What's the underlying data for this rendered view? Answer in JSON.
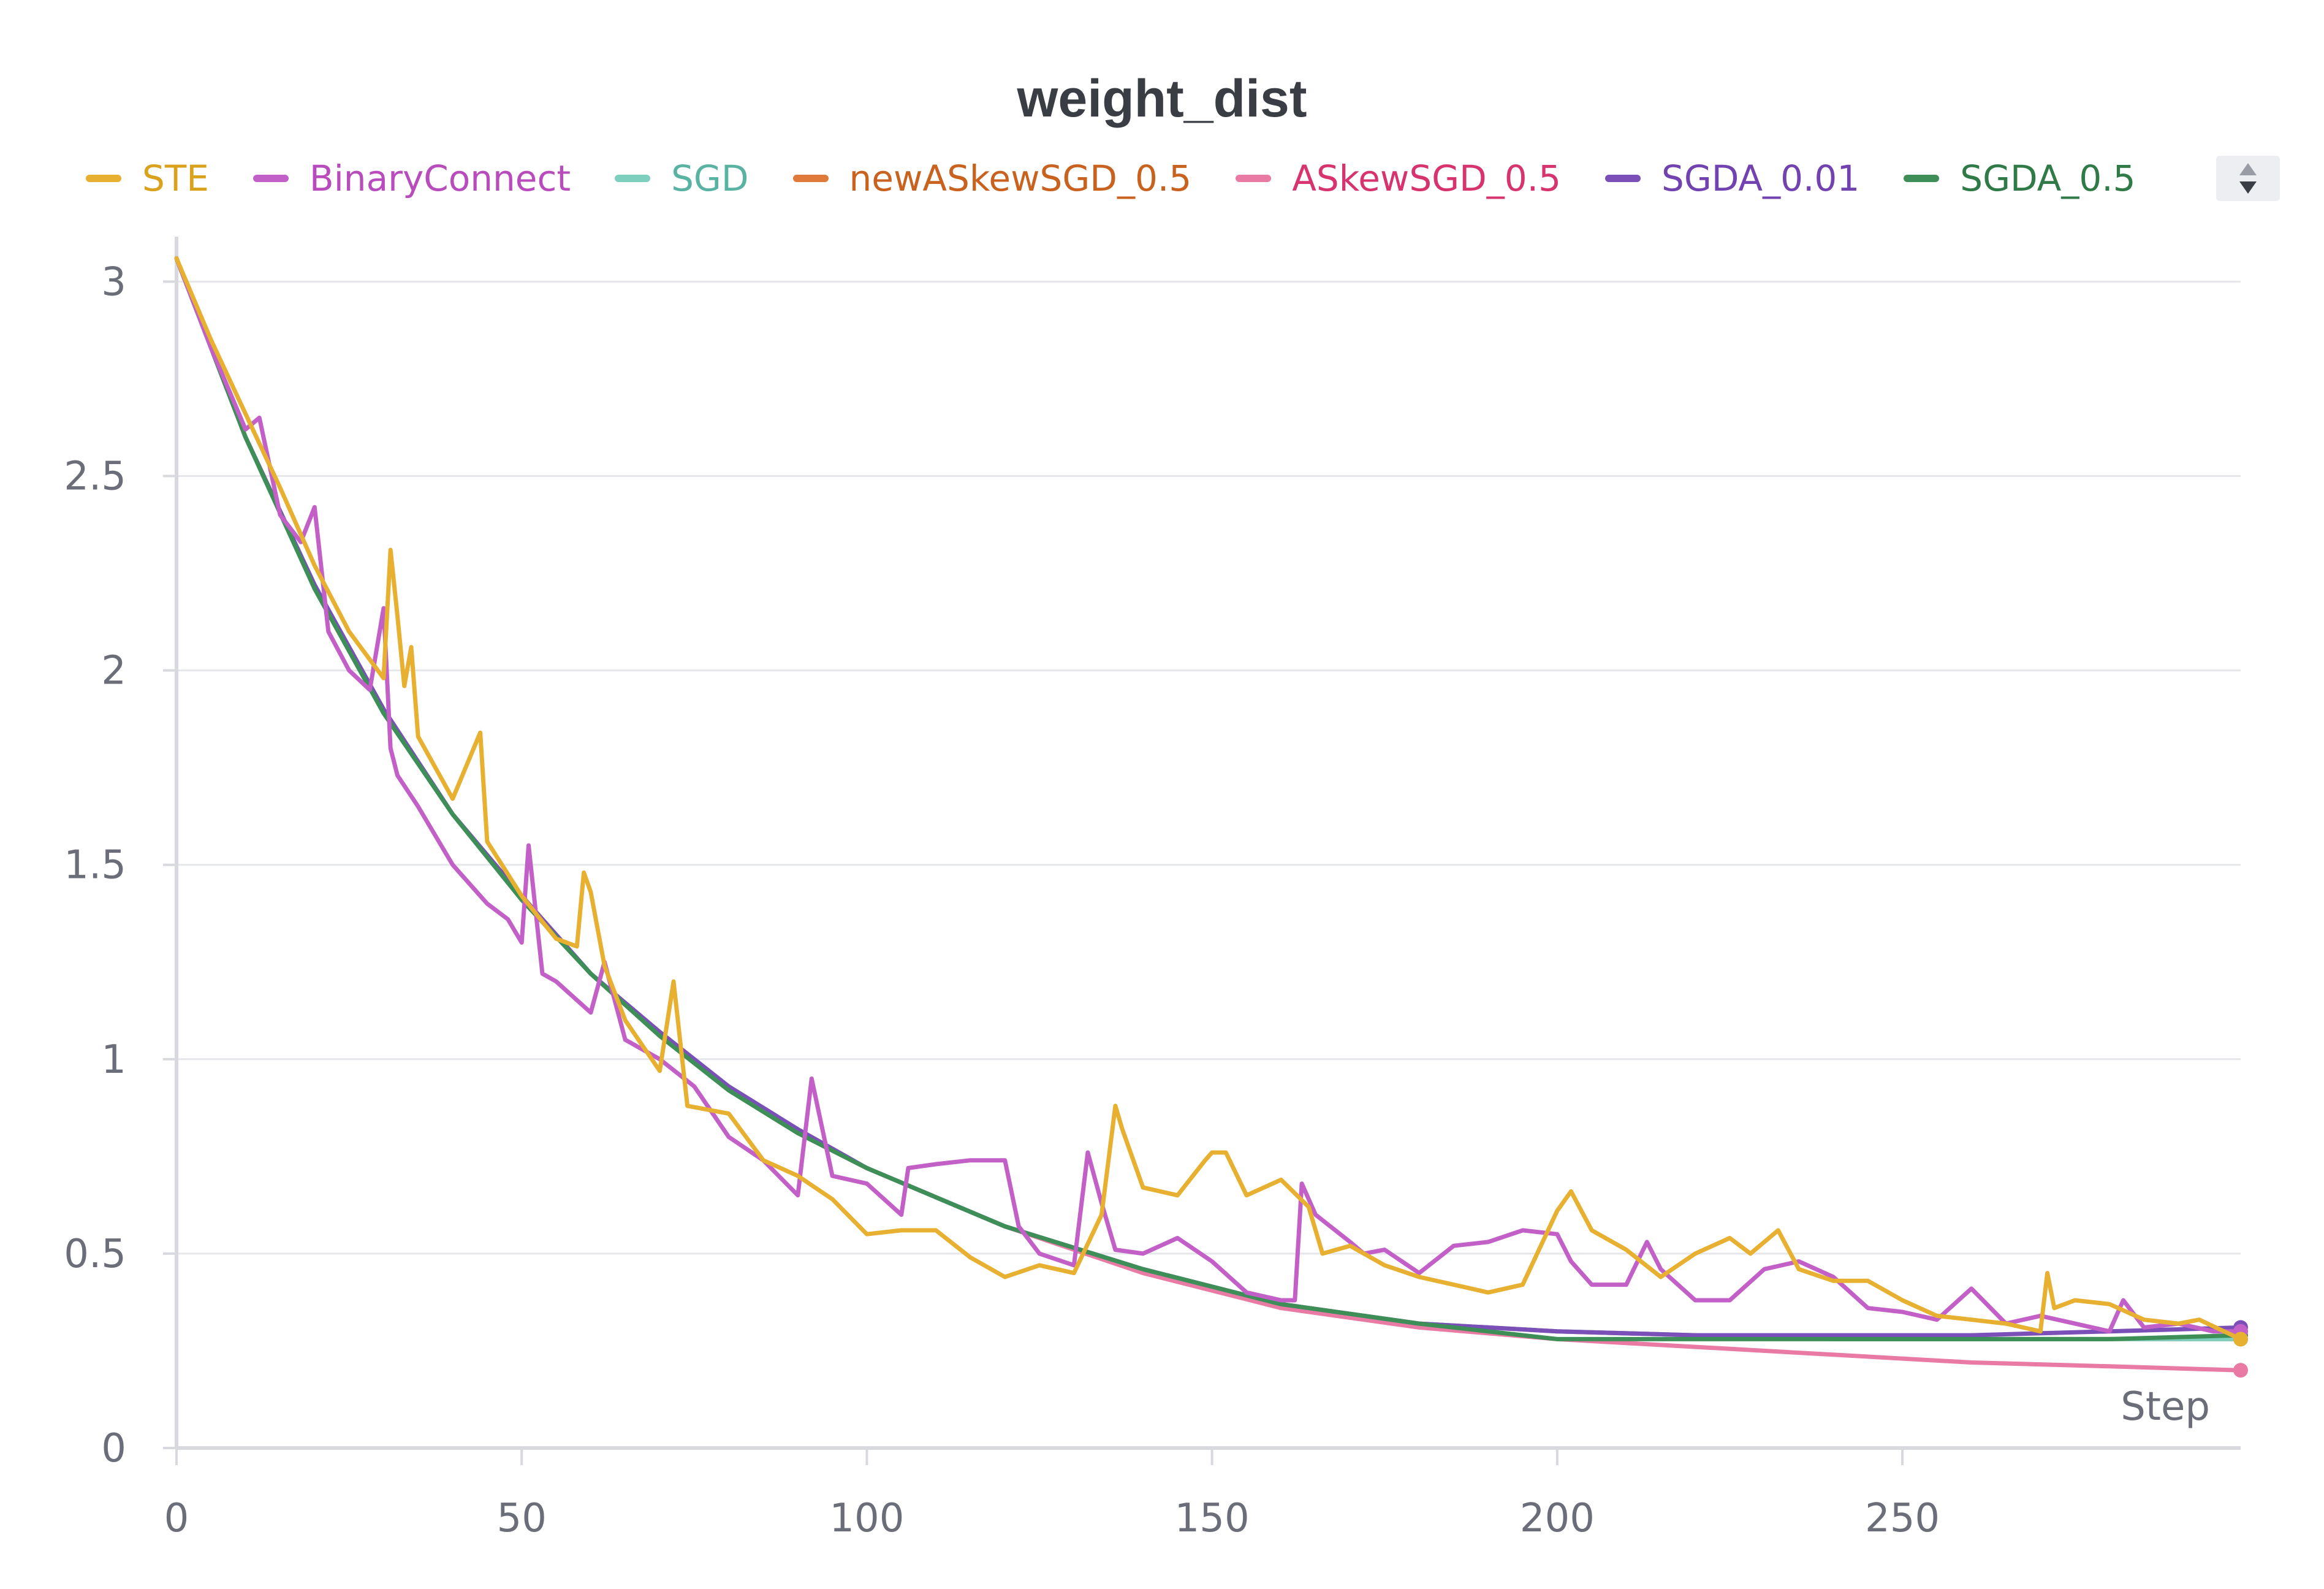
{
  "chart_data": {
    "type": "line",
    "title": "weight_dist",
    "xlabel": "Step",
    "ylabel": "",
    "xlim": [
      0,
      299
    ],
    "ylim": [
      0,
      3.1
    ],
    "xticks": [
      0,
      50,
      100,
      150,
      200,
      250
    ],
    "yticks": [
      0,
      0.5,
      1,
      1.5,
      2,
      2.5,
      3
    ],
    "xtick_labels": [
      "0",
      "50",
      "100",
      "150",
      "200",
      "250"
    ],
    "ytick_labels": [
      "0",
      "0.5",
      "1",
      "1.5",
      "2",
      "2.5",
      "3"
    ],
    "grid": true,
    "legend_position": "top",
    "series": [
      {
        "name": "STE",
        "color": "#e8b030",
        "text_color": "#d9a11c",
        "x": [
          0,
          5,
          10,
          15,
          20,
          25,
          30,
          31,
          32,
          33,
          34,
          35,
          40,
          44,
          45,
          50,
          55,
          58,
          59,
          60,
          62,
          65,
          70,
          72,
          74,
          80,
          85,
          90,
          95,
          100,
          105,
          110,
          115,
          120,
          125,
          130,
          134,
          136,
          137,
          140,
          145,
          149,
          150,
          152,
          155,
          160,
          164,
          166,
          170,
          175,
          180,
          185,
          190,
          195,
          200,
          202,
          205,
          210,
          215,
          220,
          225,
          228,
          232,
          235,
          240,
          245,
          250,
          255,
          260,
          265,
          270,
          271,
          272,
          275,
          280,
          285,
          290,
          293,
          299
        ],
        "y": [
          3.06,
          2.85,
          2.66,
          2.47,
          2.27,
          2.1,
          1.98,
          2.31,
          2.14,
          1.96,
          2.06,
          1.83,
          1.67,
          1.84,
          1.56,
          1.42,
          1.31,
          1.29,
          1.48,
          1.43,
          1.24,
          1.1,
          0.97,
          1.2,
          0.88,
          0.86,
          0.74,
          0.7,
          0.64,
          0.55,
          0.56,
          0.56,
          0.49,
          0.44,
          0.47,
          0.45,
          0.6,
          0.88,
          0.82,
          0.67,
          0.65,
          0.74,
          0.76,
          0.76,
          0.65,
          0.69,
          0.62,
          0.5,
          0.52,
          0.47,
          0.44,
          0.42,
          0.4,
          0.42,
          0.61,
          0.66,
          0.56,
          0.51,
          0.44,
          0.5,
          0.54,
          0.5,
          0.56,
          0.46,
          0.43,
          0.43,
          0.38,
          0.34,
          0.33,
          0.32,
          0.3,
          0.45,
          0.36,
          0.38,
          0.37,
          0.33,
          0.32,
          0.33,
          0.28
        ]
      },
      {
        "name": "BinaryConnect",
        "color": "#c260c8",
        "text_color": "#b94cbd",
        "x": [
          0,
          5,
          10,
          12,
          15,
          18,
          20,
          22,
          25,
          28,
          30,
          31,
          32,
          35,
          40,
          45,
          48,
          50,
          51,
          53,
          55,
          60,
          62,
          65,
          70,
          75,
          80,
          85,
          90,
          92,
          95,
          100,
          105,
          106,
          110,
          115,
          120,
          122,
          125,
          130,
          132,
          134,
          136,
          140,
          145,
          150,
          155,
          160,
          162,
          163,
          165,
          170,
          172,
          175,
          180,
          185,
          190,
          195,
          200,
          202,
          205,
          210,
          213,
          215,
          220,
          225,
          230,
          235,
          240,
          245,
          250,
          255,
          260,
          265,
          270,
          275,
          280,
          282,
          285,
          290,
          295,
          299
        ],
        "y": [
          3.06,
          2.83,
          2.62,
          2.65,
          2.4,
          2.33,
          2.42,
          2.1,
          2.0,
          1.95,
          2.16,
          1.8,
          1.73,
          1.65,
          1.5,
          1.4,
          1.36,
          1.3,
          1.55,
          1.22,
          1.2,
          1.12,
          1.25,
          1.05,
          1.0,
          0.93,
          0.8,
          0.74,
          0.65,
          0.95,
          0.7,
          0.68,
          0.6,
          0.72,
          0.73,
          0.74,
          0.74,
          0.57,
          0.5,
          0.47,
          0.76,
          0.63,
          0.51,
          0.5,
          0.54,
          0.48,
          0.4,
          0.38,
          0.38,
          0.68,
          0.6,
          0.53,
          0.5,
          0.51,
          0.45,
          0.52,
          0.53,
          0.56,
          0.55,
          0.48,
          0.42,
          0.42,
          0.53,
          0.46,
          0.38,
          0.38,
          0.46,
          0.48,
          0.44,
          0.36,
          0.35,
          0.33,
          0.41,
          0.32,
          0.34,
          0.32,
          0.3,
          0.38,
          0.31,
          0.32,
          0.3,
          0.3
        ]
      },
      {
        "name": "SGD",
        "color": "#7fcfbf",
        "text_color": "#58b3a2",
        "x": [
          0,
          10,
          20,
          30,
          40,
          50,
          60,
          70,
          80,
          90,
          100,
          120,
          140,
          160,
          180,
          200,
          220,
          240,
          260,
          280,
          299
        ],
        "y": [
          3.06,
          2.6,
          2.22,
          1.9,
          1.63,
          1.42,
          1.22,
          1.06,
          0.92,
          0.81,
          0.72,
          0.57,
          0.46,
          0.37,
          0.32,
          0.3,
          0.29,
          0.28,
          0.28,
          0.28,
          0.28
        ]
      },
      {
        "name": "newASkewSGD_0.5",
        "color": "#e07a3a",
        "text_color": "#c9621f",
        "x": [
          0,
          10,
          20,
          30,
          40,
          50,
          60,
          70,
          80,
          90,
          100,
          120,
          140,
          160,
          180,
          200,
          220,
          240,
          260,
          280,
          299
        ],
        "y": [
          3.06,
          2.6,
          2.22,
          1.9,
          1.63,
          1.42,
          1.22,
          1.06,
          0.92,
          0.81,
          0.72,
          0.57,
          0.46,
          0.37,
          0.32,
          0.3,
          0.29,
          0.28,
          0.28,
          0.28,
          0.28
        ]
      },
      {
        "name": "ASkewSGD_0.5",
        "color": "#e87aa3",
        "text_color": "#d6336f",
        "x": [
          0,
          10,
          20,
          30,
          40,
          50,
          60,
          70,
          80,
          90,
          100,
          120,
          140,
          160,
          180,
          200,
          220,
          240,
          260,
          280,
          299
        ],
        "y": [
          3.06,
          2.6,
          2.22,
          1.9,
          1.63,
          1.42,
          1.22,
          1.06,
          0.92,
          0.81,
          0.72,
          0.57,
          0.45,
          0.36,
          0.31,
          0.28,
          0.26,
          0.24,
          0.22,
          0.21,
          0.2
        ]
      },
      {
        "name": "SGDA_0.01",
        "color": "#7b4fb8",
        "text_color": "#7142b0",
        "x": [
          0,
          10,
          20,
          30,
          40,
          50,
          60,
          70,
          80,
          90,
          100,
          120,
          140,
          160,
          180,
          200,
          220,
          240,
          260,
          280,
          299
        ],
        "y": [
          3.06,
          2.6,
          2.22,
          1.9,
          1.63,
          1.42,
          1.22,
          1.07,
          0.93,
          0.82,
          0.72,
          0.57,
          0.46,
          0.37,
          0.32,
          0.3,
          0.29,
          0.29,
          0.29,
          0.3,
          0.31
        ]
      },
      {
        "name": "SGDA_0.5",
        "color": "#3d8f57",
        "text_color": "#2f7a47",
        "x": [
          0,
          10,
          20,
          30,
          40,
          50,
          60,
          70,
          80,
          90,
          100,
          120,
          140,
          160,
          180,
          200,
          220,
          240,
          260,
          280,
          299
        ],
        "y": [
          3.06,
          2.6,
          2.21,
          1.89,
          1.63,
          1.41,
          1.22,
          1.06,
          0.92,
          0.81,
          0.72,
          0.57,
          0.46,
          0.37,
          0.32,
          0.28,
          0.28,
          0.28,
          0.28,
          0.28,
          0.29
        ]
      }
    ]
  },
  "legend": {
    "scroll_up_icon": "triangle-up-icon",
    "scroll_down_icon": "triangle-down-icon"
  }
}
